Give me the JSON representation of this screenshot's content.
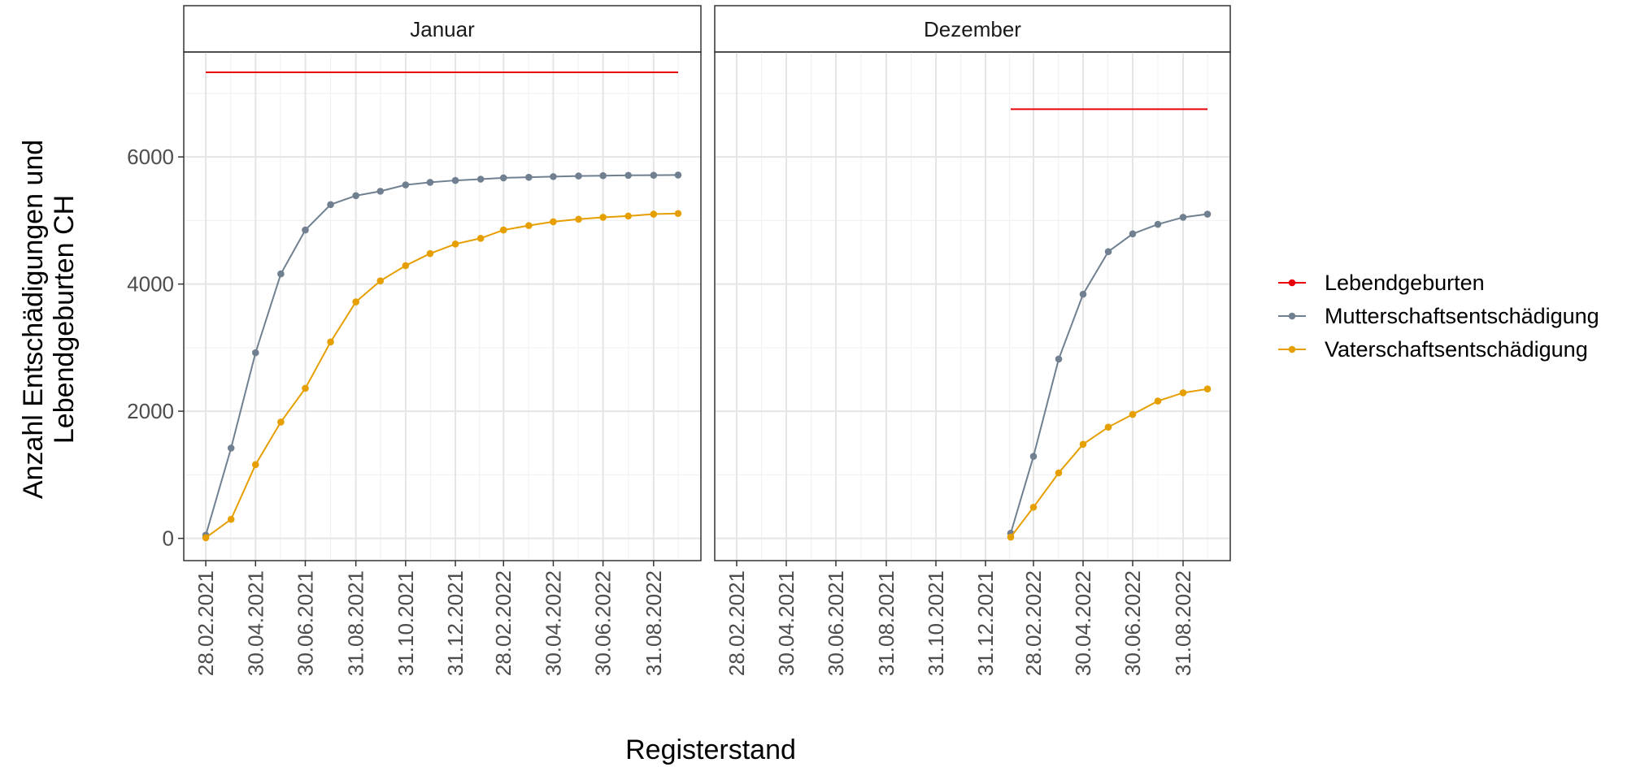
{
  "chart_data": {
    "type": "line",
    "xlabel": "Registerstand",
    "ylabel": [
      "Anzahl Entschädigungen und",
      "Lebendgeburten CH"
    ],
    "y_ticks": [
      0,
      2000,
      4000,
      6000
    ],
    "ylim": [
      -350,
      7650
    ],
    "grid": true,
    "legend_position": "right",
    "x_tick_labels": [
      "28.02.2021",
      "30.04.2021",
      "30.06.2021",
      "31.08.2021",
      "31.10.2021",
      "31.12.2021",
      "28.02.2022",
      "30.04.2022",
      "30.06.2022",
      "31.08.2022"
    ],
    "x_ticks": [
      "2021-02-28",
      "2021-04-30",
      "2021-06-30",
      "2021-08-31",
      "2021-10-31",
      "2021-12-31",
      "2022-02-28",
      "2022-04-30",
      "2022-06-30",
      "2022-08-31"
    ],
    "xlim": [
      "2021-02-01",
      "2022-10-28"
    ],
    "legend": [
      {
        "name": "Lebendgeburten",
        "color": "#e8000b"
      },
      {
        "name": "Mutterschaftsentschädigung",
        "color": "#708090"
      },
      {
        "name": "Vaterschaftsentschädigung",
        "color": "#e69f00"
      }
    ],
    "panels": [
      {
        "strip": "Januar",
        "series": [
          {
            "name": "Lebendgeburten",
            "color": "#e8000b",
            "markers": false,
            "x": [
              "2021-02-28",
              "2022-09-30"
            ],
            "y": [
              7330,
              7330
            ]
          },
          {
            "name": "Mutterschaftsentschädigung",
            "color": "#708090",
            "markers": true,
            "x": [
              "2021-02-28",
              "2021-03-31",
              "2021-04-30",
              "2021-05-31",
              "2021-06-30",
              "2021-07-31",
              "2021-08-31",
              "2021-09-30",
              "2021-10-31",
              "2021-11-30",
              "2021-12-31",
              "2022-01-31",
              "2022-02-28",
              "2022-03-31",
              "2022-04-30",
              "2022-05-31",
              "2022-06-30",
              "2022-07-31",
              "2022-08-31",
              "2022-09-30"
            ],
            "y": [
              50,
              1420,
              2920,
              4160,
              4850,
              5250,
              5390,
              5460,
              5560,
              5600,
              5630,
              5650,
              5670,
              5680,
              5690,
              5700,
              5705,
              5710,
              5712,
              5715
            ]
          },
          {
            "name": "Vaterschaftsentschädigung",
            "color": "#e69f00",
            "markers": true,
            "x": [
              "2021-02-28",
              "2021-03-31",
              "2021-04-30",
              "2021-05-31",
              "2021-06-30",
              "2021-07-31",
              "2021-08-31",
              "2021-09-30",
              "2021-10-31",
              "2021-11-30",
              "2021-12-31",
              "2022-01-31",
              "2022-02-28",
              "2022-03-31",
              "2022-04-30",
              "2022-05-31",
              "2022-06-30",
              "2022-07-31",
              "2022-08-31",
              "2022-09-30"
            ],
            "y": [
              10,
              300,
              1160,
              1830,
              2360,
              3090,
              3720,
              4050,
              4290,
              4480,
              4630,
              4720,
              4850,
              4920,
              4980,
              5020,
              5050,
              5070,
              5100,
              5110
            ]
          }
        ]
      },
      {
        "strip": "Dezember",
        "series": [
          {
            "name": "Lebendgeburten",
            "color": "#e8000b",
            "markers": false,
            "x": [
              "2022-01-31",
              "2022-09-30"
            ],
            "y": [
              6750,
              6750
            ]
          },
          {
            "name": "Mutterschaftsentschädigung",
            "color": "#708090",
            "markers": true,
            "x": [
              "2022-01-31",
              "2022-02-28",
              "2022-03-31",
              "2022-04-30",
              "2022-05-31",
              "2022-06-30",
              "2022-07-31",
              "2022-08-31",
              "2022-09-30"
            ],
            "y": [
              80,
              1290,
              2820,
              3840,
              4510,
              4790,
              4940,
              5050,
              5100
            ]
          },
          {
            "name": "Vaterschaftsentschädigung",
            "color": "#e69f00",
            "markers": true,
            "x": [
              "2022-01-31",
              "2022-02-28",
              "2022-03-31",
              "2022-04-30",
              "2022-05-31",
              "2022-06-30",
              "2022-07-31",
              "2022-08-31",
              "2022-09-30"
            ],
            "y": [
              20,
              490,
              1030,
              1480,
              1750,
              1950,
              2160,
              2290,
              2350
            ]
          }
        ]
      }
    ]
  }
}
